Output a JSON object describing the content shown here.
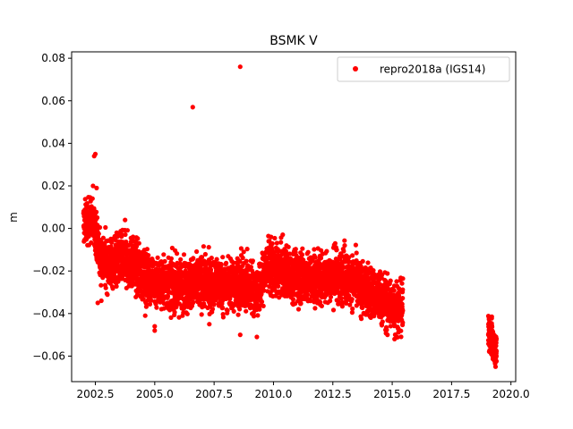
{
  "chart_data": {
    "type": "scatter",
    "title": "BSMK V",
    "xlabel": "",
    "ylabel": "m",
    "xlim": [
      2001.5,
      2020.2
    ],
    "ylim": [
      -0.072,
      0.083
    ],
    "x_ticks": [
      2002.5,
      2005.0,
      2007.5,
      2010.0,
      2012.5,
      2015.0,
      2017.5,
      2020.0
    ],
    "x_tick_labels": [
      "2002.5",
      "2005.0",
      "2007.5",
      "2010.0",
      "2012.5",
      "2015.0",
      "2017.5",
      "2020.0"
    ],
    "y_ticks": [
      -0.06,
      -0.04,
      -0.02,
      0.0,
      0.02,
      0.04,
      0.06,
      0.08
    ],
    "y_tick_labels": [
      "−0.06",
      "−0.04",
      "−0.02",
      "0.00",
      "0.02",
      "0.04",
      "0.06",
      "0.08"
    ],
    "grid": false,
    "legend_position": "top-right",
    "series": [
      {
        "name": "repro2018a (IGS14)",
        "color": "#ff0000",
        "marker": "circle",
        "trend": [
          [
            2002.0,
            0.002
          ],
          [
            2002.3,
            0.004
          ],
          [
            2002.5,
            0.0
          ],
          [
            2002.7,
            -0.013
          ],
          [
            2003.0,
            -0.016
          ],
          [
            2003.5,
            -0.015
          ],
          [
            2004.0,
            -0.016
          ],
          [
            2004.5,
            -0.022
          ],
          [
            2005.0,
            -0.025
          ],
          [
            2005.5,
            -0.026
          ],
          [
            2006.0,
            -0.027
          ],
          [
            2006.5,
            -0.026
          ],
          [
            2007.0,
            -0.025
          ],
          [
            2007.5,
            -0.026
          ],
          [
            2008.0,
            -0.027
          ],
          [
            2008.5,
            -0.025
          ],
          [
            2009.0,
            -0.027
          ],
          [
            2009.4,
            -0.03
          ],
          [
            2009.7,
            -0.018
          ],
          [
            2010.0,
            -0.019
          ],
          [
            2010.5,
            -0.021
          ],
          [
            2011.0,
            -0.022
          ],
          [
            2011.5,
            -0.024
          ],
          [
            2012.0,
            -0.024
          ],
          [
            2012.5,
            -0.022
          ],
          [
            2013.0,
            -0.023
          ],
          [
            2013.5,
            -0.026
          ],
          [
            2014.0,
            -0.03
          ],
          [
            2014.5,
            -0.033
          ],
          [
            2015.0,
            -0.036
          ],
          [
            2015.45,
            -0.038
          ]
        ],
        "spread": 0.006,
        "segments": [
          [
            2002.0,
            2015.45
          ],
          [
            2019.05,
            2019.4
          ]
        ],
        "late_trend": [
          [
            2019.05,
            -0.047
          ],
          [
            2019.2,
            -0.053
          ],
          [
            2019.4,
            -0.058
          ]
        ],
        "outliers": [
          [
            2002.45,
            0.034
          ],
          [
            2002.5,
            0.035
          ],
          [
            2002.4,
            0.02
          ],
          [
            2002.55,
            0.019
          ],
          [
            2003.75,
            0.004
          ],
          [
            2006.6,
            0.057
          ],
          [
            2008.6,
            0.076
          ],
          [
            2005.0,
            -0.048
          ],
          [
            2005.0,
            -0.046
          ],
          [
            2007.3,
            -0.045
          ],
          [
            2008.6,
            -0.05
          ],
          [
            2009.3,
            -0.051
          ],
          [
            2002.6,
            -0.035
          ],
          [
            2002.75,
            -0.034
          ],
          [
            2004.6,
            -0.041
          ],
          [
            2015.1,
            -0.052
          ],
          [
            2014.8,
            -0.05
          ],
          [
            2019.35,
            -0.065
          ],
          [
            2019.3,
            -0.062
          ],
          [
            2009.9,
            -0.004
          ],
          [
            2009.8,
            -0.006
          ],
          [
            2012.6,
            -0.007
          ],
          [
            2013.0,
            -0.008
          ]
        ],
        "n_points": 4200
      }
    ]
  }
}
